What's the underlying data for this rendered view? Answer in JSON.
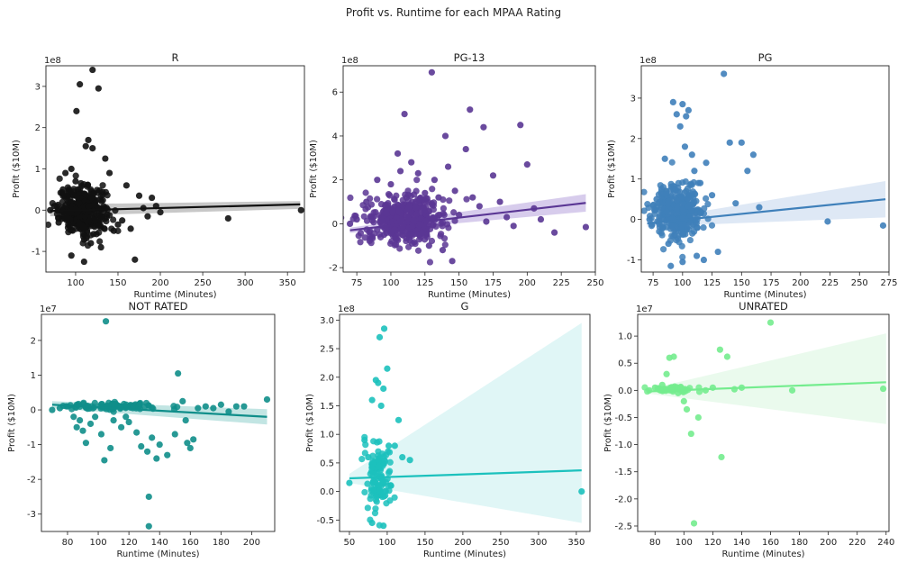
{
  "figure": {
    "title": "Profit vs. Runtime for each MPAA Rating"
  },
  "chart_data": [
    {
      "type": "scatter",
      "title": "R",
      "xlabel": "Runtime (Minutes)",
      "ylabel": "Profit ($10M)",
      "y_exponent": "1e8",
      "xlim": [
        65,
        370
      ],
      "ylim": [
        -1.5,
        3.5
      ],
      "xticks": [
        100,
        150,
        200,
        250,
        300,
        350
      ],
      "yticks": [
        -1,
        0,
        1,
        2,
        3
      ],
      "color": "#111111",
      "band_color": "#9a9a9a",
      "fit": {
        "x": [
          70,
          365
        ],
        "y": [
          -0.02,
          0.14
        ],
        "ci_lo": [
          -0.15,
          0.03
        ],
        "ci_hi": [
          0.14,
          0.22
        ]
      },
      "cluster": {
        "center": [
          108,
          0.0
        ],
        "sx": 14,
        "sy": 0.28,
        "n": 380
      },
      "points": [
        [
          70,
          0.0
        ],
        [
          75,
          0.1
        ],
        [
          80,
          -0.3
        ],
        [
          85,
          0.5
        ],
        [
          90,
          -0.2
        ],
        [
          95,
          1.0
        ],
        [
          100,
          0.7
        ],
        [
          101,
          2.4
        ],
        [
          105,
          3.05
        ],
        [
          112,
          1.55
        ],
        [
          115,
          1.7
        ],
        [
          118,
          -0.8
        ],
        [
          120,
          1.5
        ],
        [
          120,
          3.4
        ],
        [
          127,
          2.95
        ],
        [
          130,
          -0.9
        ],
        [
          140,
          0.9
        ],
        [
          145,
          -0.5
        ],
        [
          150,
          -0.35
        ],
        [
          155,
          -0.25
        ],
        [
          160,
          0.6
        ],
        [
          165,
          -0.45
        ],
        [
          170,
          -1.2
        ],
        [
          175,
          0.35
        ],
        [
          180,
          0.05
        ],
        [
          185,
          -0.15
        ],
        [
          190,
          0.3
        ],
        [
          195,
          0.1
        ],
        [
          200,
          -0.05
        ],
        [
          280,
          -0.2
        ],
        [
          366,
          0.0
        ],
        [
          110,
          -1.25
        ],
        [
          95,
          -1.1
        ],
        [
          135,
          1.25
        ],
        [
          88,
          0.9
        ]
      ]
    },
    {
      "type": "scatter",
      "title": "PG-13",
      "xlabel": "Runtime (Minutes)",
      "ylabel": "Profit ($10M)",
      "y_exponent": "1e8",
      "xlim": [
        65,
        250
      ],
      "ylim": [
        -2.2,
        7.2
      ],
      "xticks": [
        75,
        100,
        125,
        150,
        175,
        200,
        225,
        250
      ],
      "yticks": [
        -2,
        0,
        2,
        4,
        6
      ],
      "color": "#5a3694",
      "band_color": "#b7a3dd",
      "fit": {
        "x": [
          70,
          243
        ],
        "y": [
          -0.3,
          0.95
        ],
        "ci_lo": [
          -0.42,
          0.55
        ],
        "ci_hi": [
          -0.18,
          1.35
        ]
      },
      "cluster": {
        "center": [
          110,
          0.2
        ],
        "sx": 15,
        "sy": 0.55,
        "n": 420
      },
      "points": [
        [
          70,
          0.0
        ],
        [
          75,
          0.2
        ],
        [
          82,
          1.0
        ],
        [
          90,
          2.0
        ],
        [
          95,
          -0.5
        ],
        [
          100,
          1.8
        ],
        [
          105,
          3.2
        ],
        [
          107,
          2.4
        ],
        [
          110,
          5.0
        ],
        [
          115,
          2.8
        ],
        [
          120,
          2.3
        ],
        [
          125,
          1.4
        ],
        [
          130,
          6.9
        ],
        [
          132,
          2.0
        ],
        [
          135,
          1.2
        ],
        [
          140,
          4.0
        ],
        [
          142,
          2.6
        ],
        [
          147,
          1.5
        ],
        [
          150,
          0.4
        ],
        [
          155,
          3.4
        ],
        [
          158,
          5.2
        ],
        [
          160,
          1.2
        ],
        [
          165,
          0.8
        ],
        [
          168,
          4.4
        ],
        [
          170,
          0.1
        ],
        [
          175,
          2.2
        ],
        [
          180,
          1.0
        ],
        [
          185,
          0.3
        ],
        [
          190,
          -0.1
        ],
        [
          195,
          4.5
        ],
        [
          200,
          2.7
        ],
        [
          205,
          0.7
        ],
        [
          210,
          0.2
        ],
        [
          220,
          -0.4
        ],
        [
          243,
          -0.15
        ],
        [
          145,
          -1.7
        ],
        [
          138,
          -1.2
        ],
        [
          128,
          -1.0
        ]
      ]
    },
    {
      "type": "scatter",
      "title": "PG",
      "xlabel": "Runtime (Minutes)",
      "ylabel": "Profit ($10M)",
      "y_exponent": "1e8",
      "xlim": [
        65,
        275
      ],
      "ylim": [
        -1.3,
        3.8
      ],
      "xticks": [
        75,
        100,
        125,
        150,
        175,
        200,
        225,
        250,
        275
      ],
      "yticks": [
        -1,
        0,
        1,
        2,
        3
      ],
      "color": "#3f80ba",
      "band_color": "#c2d6ec",
      "fit": {
        "x": [
          70,
          272
        ],
        "y": [
          -0.1,
          0.5
        ],
        "ci_lo": [
          -0.18,
          0.05
        ],
        "ci_hi": [
          -0.02,
          0.95
        ]
      },
      "cluster": {
        "center": [
          97,
          0.2
        ],
        "sx": 11,
        "sy": 0.35,
        "n": 320
      },
      "points": [
        [
          72,
          0.0
        ],
        [
          78,
          0.5
        ],
        [
          85,
          1.5
        ],
        [
          88,
          -0.6
        ],
        [
          92,
          2.9
        ],
        [
          95,
          2.6
        ],
        [
          98,
          2.3
        ],
        [
          100,
          2.85
        ],
        [
          102,
          1.8
        ],
        [
          103,
          2.55
        ],
        [
          105,
          2.7
        ],
        [
          108,
          1.6
        ],
        [
          110,
          1.2
        ],
        [
          112,
          -0.9
        ],
        [
          115,
          0.9
        ],
        [
          118,
          -1.0
        ],
        [
          120,
          1.4
        ],
        [
          125,
          0.6
        ],
        [
          130,
          -0.8
        ],
        [
          135,
          3.6
        ],
        [
          140,
          1.9
        ],
        [
          145,
          0.4
        ],
        [
          150,
          1.9
        ],
        [
          155,
          1.2
        ],
        [
          160,
          1.6
        ],
        [
          165,
          0.3
        ],
        [
          223,
          -0.05
        ],
        [
          270,
          -0.15
        ],
        [
          90,
          -1.15
        ],
        [
          100,
          -1.05
        ]
      ]
    },
    {
      "type": "scatter",
      "title": "NOT RATED",
      "xlabel": "Runtime (Minutes)",
      "ylabel": "Profit ($10M)",
      "y_exponent": "1e7",
      "xlim": [
        63,
        215
      ],
      "ylim": [
        -3.5,
        2.75
      ],
      "xticks": [
        80,
        100,
        120,
        140,
        160,
        180,
        200
      ],
      "yticks": [
        -3,
        -2,
        -1,
        0,
        1,
        2
      ],
      "color": "#0f8e8a",
      "band_color": "#8fd0cc",
      "fit": {
        "x": [
          70,
          210
        ],
        "y": [
          0.15,
          -0.2
        ],
        "ci_lo": [
          0.05,
          -0.42
        ],
        "ci_hi": [
          0.25,
          0.02
        ]
      },
      "cluster": {
        "center": [
          112,
          0.1
        ],
        "sx": 16,
        "sy": 0.06,
        "n": 90
      },
      "points": [
        [
          70,
          0.0
        ],
        [
          75,
          0.05
        ],
        [
          80,
          0.1
        ],
        [
          84,
          -0.2
        ],
        [
          86,
          -0.5
        ],
        [
          88,
          -0.3
        ],
        [
          90,
          -0.6
        ],
        [
          92,
          -0.95
        ],
        [
          95,
          -0.4
        ],
        [
          98,
          -0.2
        ],
        [
          102,
          -0.7
        ],
        [
          104,
          -1.45
        ],
        [
          105,
          2.55
        ],
        [
          108,
          -1.1
        ],
        [
          110,
          -0.3
        ],
        [
          115,
          -0.5
        ],
        [
          118,
          -0.2
        ],
        [
          120,
          -0.35
        ],
        [
          125,
          -0.65
        ],
        [
          128,
          -1.05
        ],
        [
          132,
          -1.2
        ],
        [
          133,
          -2.5
        ],
        [
          133,
          -3.35
        ],
        [
          135,
          -0.8
        ],
        [
          138,
          -1.4
        ],
        [
          140,
          -1.0
        ],
        [
          145,
          -1.3
        ],
        [
          150,
          -0.7
        ],
        [
          152,
          1.05
        ],
        [
          155,
          0.25
        ],
        [
          157,
          -0.3
        ],
        [
          160,
          -1.1
        ],
        [
          162,
          -0.85
        ],
        [
          165,
          0.05
        ],
        [
          170,
          0.1
        ],
        [
          175,
          0.05
        ],
        [
          180,
          0.15
        ],
        [
          185,
          -0.05
        ],
        [
          190,
          0.1
        ],
        [
          195,
          0.1
        ],
        [
          210,
          0.3
        ],
        [
          158,
          -0.95
        ]
      ]
    },
    {
      "type": "scatter",
      "title": "G",
      "xlabel": "Runtime (Minutes)",
      "ylabel": "Profit ($10M)",
      "y_exponent": "1e8",
      "xlim": [
        37,
        368
      ],
      "ylim": [
        -0.7,
        3.1
      ],
      "xticks": [
        50,
        100,
        150,
        200,
        250,
        300,
        350
      ],
      "yticks": [
        -0.5,
        0.0,
        0.5,
        1.0,
        1.5,
        2.0,
        2.5,
        3.0
      ],
      "tick_format": "1",
      "color": "#1cc1bd",
      "band_color": "#c7efef",
      "fit": {
        "x": [
          50,
          357
        ],
        "y": [
          0.23,
          0.37
        ],
        "ci_lo": [
          0.15,
          -0.55
        ],
        "ci_hi": [
          0.31,
          2.95
        ]
      },
      "cluster": {
        "center": [
          88,
          0.25
        ],
        "sx": 8,
        "sy": 0.3,
        "n": 120
      },
      "points": [
        [
          50,
          0.15
        ],
        [
          70,
          0.9
        ],
        [
          75,
          0.6
        ],
        [
          80,
          1.6
        ],
        [
          85,
          1.95
        ],
        [
          88,
          1.9
        ],
        [
          90,
          2.7
        ],
        [
          92,
          1.5
        ],
        [
          95,
          1.8
        ],
        [
          96,
          2.85
        ],
        [
          100,
          2.15
        ],
        [
          102,
          0.8
        ],
        [
          105,
          0.1
        ],
        [
          110,
          0.8
        ],
        [
          115,
          1.25
        ],
        [
          80,
          -0.55
        ],
        [
          95,
          -0.6
        ],
        [
          357,
          0.0
        ],
        [
          130,
          0.55
        ],
        [
          120,
          0.6
        ]
      ]
    },
    {
      "type": "scatter",
      "title": "UNRATED",
      "xlabel": "Runtime (Minutes)",
      "ylabel": "Profit ($10M)",
      "y_exponent": "1e7",
      "xlim": [
        68,
        242
      ],
      "ylim": [
        -2.6,
        1.4
      ],
      "xticks": [
        80,
        100,
        120,
        140,
        160,
        180,
        200,
        220,
        240
      ],
      "yticks": [
        -2.5,
        -2.0,
        -1.5,
        -1.0,
        -0.5,
        0.0,
        0.5,
        1.0
      ],
      "tick_format": "1",
      "color": "#74ec8e",
      "band_color": "#d9f6de",
      "fit": {
        "x": [
          75,
          240
        ],
        "y": [
          -0.02,
          0.15
        ],
        "ci_lo": [
          -0.06,
          -0.62
        ],
        "ci_hi": [
          0.02,
          1.05
        ]
      },
      "cluster": {
        "center": [
          92,
          0.02
        ],
        "sx": 8,
        "sy": 0.03,
        "n": 45
      },
      "points": [
        [
          76,
          0.0
        ],
        [
          80,
          0.05
        ],
        [
          85,
          0.1
        ],
        [
          88,
          0.3
        ],
        [
          90,
          0.6
        ],
        [
          93,
          0.62
        ],
        [
          96,
          -0.05
        ],
        [
          100,
          -0.2
        ],
        [
          102,
          -0.35
        ],
        [
          105,
          -0.8
        ],
        [
          107,
          -2.45
        ],
        [
          110,
          -0.5
        ],
        [
          115,
          0.0
        ],
        [
          120,
          0.05
        ],
        [
          125,
          0.75
        ],
        [
          126,
          -1.23
        ],
        [
          130,
          0.62
        ],
        [
          135,
          0.02
        ],
        [
          140,
          0.05
        ],
        [
          160,
          1.25
        ],
        [
          175,
          0.0
        ],
        [
          238,
          0.03
        ]
      ]
    }
  ]
}
